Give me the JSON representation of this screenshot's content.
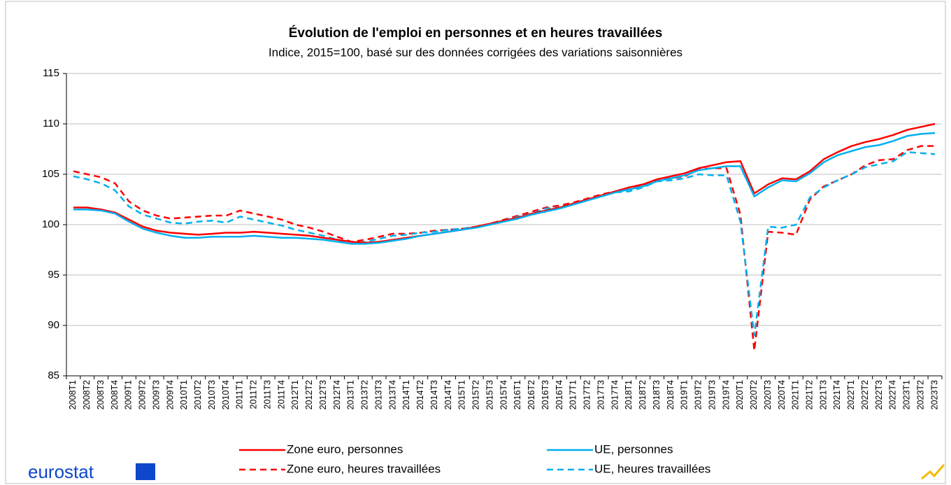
{
  "chart_data": {
    "type": "line",
    "title": "Évolution de l'emploi en personnes et en heures travaillées",
    "subtitle": "Indice, 2015=100, basé sur des données corrigées des variations saisonnières",
    "logo": "eurostat",
    "categories": [
      "2008T1",
      "2008T2",
      "2008T3",
      "2008T4",
      "2009T1",
      "2009T2",
      "2009T3",
      "2009T4",
      "2010T1",
      "2010T2",
      "2010T3",
      "2010T4",
      "2011T1",
      "2011T2",
      "2011T3",
      "2011T4",
      "2012T1",
      "2012T2",
      "2012T3",
      "2012T4",
      "2013T1",
      "2013T2",
      "2013T3",
      "2013T4",
      "2014T1",
      "2014T2",
      "2014T3",
      "2014T4",
      "2015T1",
      "2015T2",
      "2015T3",
      "2015T4",
      "2016T1",
      "2016T2",
      "2016T3",
      "2016T4",
      "2017T1",
      "2017T2",
      "2017T3",
      "2017T4",
      "2018T1",
      "2018T2",
      "2018T3",
      "2018T4",
      "2019T1",
      "2019T2",
      "2019T3",
      "2019T4",
      "2020T1",
      "2020T2",
      "2020T3",
      "2020T4",
      "2021T1",
      "2021T2",
      "2021T3",
      "2021T4",
      "2022T1",
      "2022T2",
      "2022T3",
      "2022T4",
      "2023T1",
      "2023T2",
      "2023T3"
    ],
    "series": [
      {
        "name": "Zone euro, personnes",
        "color": "#ff0000",
        "dashed": false,
        "values": [
          101.7,
          101.7,
          101.5,
          101.2,
          100.5,
          99.8,
          99.4,
          99.2,
          99.1,
          99.0,
          99.1,
          99.2,
          99.2,
          99.3,
          99.2,
          99.1,
          99.0,
          98.9,
          98.7,
          98.5,
          98.3,
          98.2,
          98.3,
          98.5,
          98.7,
          98.9,
          99.1,
          99.3,
          99.5,
          99.8,
          100.1,
          100.4,
          100.7,
          101.1,
          101.4,
          101.7,
          102.1,
          102.5,
          102.9,
          103.3,
          103.7,
          104.0,
          104.5,
          104.8,
          105.1,
          105.6,
          105.9,
          106.2,
          106.3,
          103.1,
          104.0,
          104.6,
          104.5,
          105.3,
          106.5,
          107.2,
          107.8,
          108.2,
          108.5,
          108.9,
          109.4,
          109.7,
          110.0
        ]
      },
      {
        "name": "UE, personnes",
        "color": "#00b0f0",
        "dashed": false,
        "values": [
          101.5,
          101.5,
          101.4,
          101.1,
          100.3,
          99.6,
          99.2,
          98.9,
          98.7,
          98.7,
          98.8,
          98.8,
          98.8,
          98.9,
          98.8,
          98.7,
          98.7,
          98.6,
          98.5,
          98.3,
          98.1,
          98.1,
          98.2,
          98.4,
          98.6,
          98.9,
          99.1,
          99.3,
          99.5,
          99.7,
          100.0,
          100.3,
          100.6,
          101.0,
          101.3,
          101.6,
          102.0,
          102.4,
          102.8,
          103.2,
          103.5,
          103.8,
          104.3,
          104.6,
          104.9,
          105.4,
          105.6,
          105.8,
          105.8,
          102.8,
          103.7,
          104.4,
          104.3,
          105.1,
          106.2,
          106.9,
          107.3,
          107.7,
          107.9,
          108.3,
          108.8,
          109.0,
          109.1
        ]
      },
      {
        "name": "Zone euro, heures travaillées",
        "color": "#ff0000",
        "dashed": true,
        "values": [
          105.3,
          105.0,
          104.7,
          104.1,
          102.3,
          101.4,
          100.9,
          100.6,
          100.7,
          100.8,
          100.9,
          100.9,
          101.4,
          101.1,
          100.8,
          100.5,
          100.0,
          99.7,
          99.3,
          98.8,
          98.3,
          98.5,
          98.8,
          99.1,
          99.1,
          99.2,
          99.4,
          99.5,
          99.6,
          99.8,
          100.1,
          100.5,
          100.9,
          101.3,
          101.7,
          101.9,
          102.2,
          102.6,
          103.0,
          103.3,
          103.5,
          103.9,
          104.4,
          104.6,
          104.8,
          105.5,
          105.6,
          105.6,
          101.0,
          87.5,
          99.3,
          99.2,
          99.0,
          102.5,
          103.8,
          104.4,
          105.0,
          105.9,
          106.4,
          106.5,
          107.4,
          107.8,
          107.8
        ]
      },
      {
        "name": "UE, heures travaillées",
        "color": "#00b0f0",
        "dashed": true,
        "values": [
          104.8,
          104.5,
          104.1,
          103.4,
          101.8,
          101.0,
          100.6,
          100.2,
          100.1,
          100.3,
          100.4,
          100.2,
          100.8,
          100.5,
          100.2,
          99.9,
          99.5,
          99.2,
          98.9,
          98.5,
          98.1,
          98.3,
          98.6,
          98.9,
          99.0,
          99.2,
          99.3,
          99.5,
          99.6,
          99.8,
          100.1,
          100.4,
          100.8,
          101.1,
          101.6,
          101.7,
          102.0,
          102.5,
          102.9,
          103.2,
          103.3,
          103.7,
          104.3,
          104.4,
          104.6,
          105.0,
          104.9,
          104.9,
          100.3,
          89.0,
          99.8,
          99.7,
          100.0,
          102.7,
          103.7,
          104.4,
          105.0,
          105.7,
          106.0,
          106.3,
          107.2,
          107.1,
          107.0
        ]
      }
    ],
    "ylim": [
      85,
      115
    ],
    "yticks": [
      85,
      90,
      95,
      100,
      105,
      110,
      115
    ],
    "grid": true,
    "legend": "bottom"
  }
}
